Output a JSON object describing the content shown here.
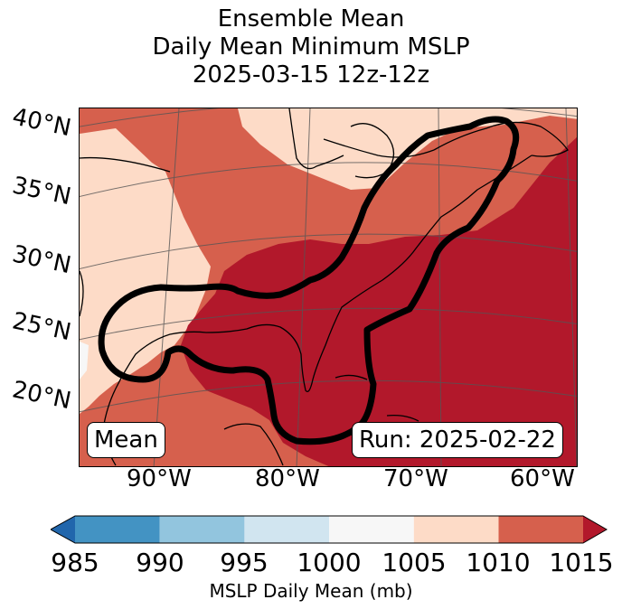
{
  "title": {
    "line1": "Ensemble Mean",
    "line2": "Daily Mean Minimum MSLP",
    "line3": "2025-03-15 12z-12z"
  },
  "map": {
    "lat_labels": [
      "40°N",
      "35°N",
      "30°N",
      "25°N",
      "20°N"
    ],
    "lon_labels": [
      "90°W",
      "80°W",
      "70°W",
      "60°W"
    ],
    "left_badge": "Mean",
    "right_badge": "Run: 2025-02-22",
    "contour": "1010 mb outline (black)"
  },
  "colorbar": {
    "ticks": [
      "985",
      "990",
      "995",
      "1000",
      "1005",
      "1010",
      "1015"
    ],
    "label": "MSLP Daily Mean (mb)",
    "colors": {
      "lt_985": "#2166ac",
      "985_990": "#4393c3",
      "990_995": "#92c5de",
      "995_1000": "#d1e5f0",
      "1000_1005": "#f7f7f7",
      "1005_1010": "#fddbc7",
      "1010_1015": "#d6604d",
      "gt_1015": "#b2182b"
    }
  }
}
